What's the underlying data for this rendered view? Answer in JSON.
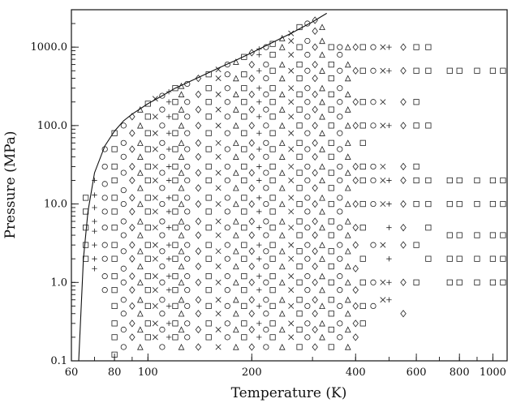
{
  "chart_data": {
    "type": "scatter",
    "title": "",
    "xlabel": "Temperature (K)",
    "ylabel": "Pressure (MPa)",
    "x_scale": "log",
    "y_scale": "log",
    "xlim": [
      60,
      1100
    ],
    "ylim": [
      0.1,
      3000
    ],
    "x_ticks": [
      {
        "value": 60,
        "label": "60"
      },
      {
        "value": 80,
        "label": "80"
      },
      {
        "value": 100,
        "label": "100"
      },
      {
        "value": 200,
        "label": "200"
      },
      {
        "value": 400,
        "label": "400"
      },
      {
        "value": 600,
        "label": "600"
      },
      {
        "value": 800,
        "label": "800"
      },
      {
        "value": 1000,
        "label": "1000"
      }
    ],
    "y_ticks": [
      {
        "value": 0.1,
        "label": "0.1"
      },
      {
        "value": 1,
        "label": "1.0"
      },
      {
        "value": 10,
        "label": "10.0"
      },
      {
        "value": 100,
        "label": "100.0"
      },
      {
        "value": 1000,
        "label": "1000.0"
      }
    ],
    "grid": false,
    "legend": "none",
    "boundary_curve": {
      "x": [
        63,
        65,
        67,
        70,
        75,
        80,
        85,
        90,
        100,
        110,
        120,
        140,
        160,
        180,
        200,
        230,
        260,
        300,
        330
      ],
      "y": [
        0.1,
        2,
        8,
        25,
        55,
        85,
        115,
        140,
        190,
        240,
        300,
        410,
        540,
        680,
        850,
        1150,
        1500,
        2100,
        2700
      ]
    },
    "data_columns": [
      {
        "x": 66,
        "y": [
          2,
          3,
          5,
          8,
          12
        ],
        "symbol": "square"
      },
      {
        "x": 70,
        "y": [
          1.5,
          2,
          3,
          4.5,
          6,
          9,
          13,
          20
        ],
        "symbol": "plus"
      },
      {
        "x": 75,
        "y": [
          0.8,
          1.2,
          2,
          3,
          5,
          8,
          12,
          18,
          30,
          50
        ],
        "symbol": "circle"
      },
      {
        "x": 80,
        "y": [
          0.12,
          0.2,
          0.3,
          0.5,
          0.8,
          1.2,
          2,
          3,
          5,
          8,
          12,
          20,
          30,
          50,
          80
        ],
        "symbol": "square"
      },
      {
        "x": 85,
        "y": [
          0.15,
          0.25,
          0.4,
          0.6,
          1,
          1.5,
          2.5,
          4,
          6,
          10,
          15,
          25,
          40,
          60,
          100
        ],
        "symbol": "circle"
      },
      {
        "x": 90,
        "y": [
          0.1,
          0.2,
          0.3,
          0.5,
          0.8,
          1.2,
          2,
          3,
          5,
          8,
          12,
          20,
          30,
          50,
          80,
          130
        ],
        "symbol": "diamond"
      },
      {
        "x": 95,
        "y": [
          0.1,
          0.15,
          0.25,
          0.4,
          0.6,
          1,
          1.6,
          2.5,
          4,
          6,
          10,
          16,
          25,
          40,
          60,
          100,
          160
        ],
        "symbol": "triangle"
      },
      {
        "x": 100,
        "y": [
          0.1,
          0.2,
          0.3,
          0.5,
          0.8,
          1.2,
          2,
          3,
          5,
          8,
          12,
          20,
          30,
          50,
          80,
          130,
          190
        ],
        "symbol": "square"
      },
      {
        "x": 105,
        "y": [
          0.2,
          0.3,
          0.5,
          0.8,
          1.2,
          2,
          3,
          5,
          8,
          12,
          20,
          30,
          50,
          80,
          130,
          220
        ],
        "symbol": "cross"
      },
      {
        "x": 110,
        "y": [
          0.1,
          0.15,
          0.25,
          0.4,
          0.6,
          1,
          1.6,
          2.5,
          4,
          6,
          10,
          16,
          25,
          40,
          60,
          100,
          160,
          240
        ],
        "symbol": "circle"
      },
      {
        "x": 115,
        "y": [
          0.2,
          0.3,
          0.5,
          0.8,
          1.2,
          2,
          3,
          5,
          8,
          12,
          20,
          30,
          50,
          80,
          130,
          200,
          270
        ],
        "symbol": "plus"
      },
      {
        "x": 120,
        "y": [
          0.1,
          0.2,
          0.3,
          0.5,
          0.8,
          1.2,
          2,
          3,
          5,
          8,
          12,
          20,
          30,
          50,
          80,
          130,
          200,
          300
        ],
        "symbol": "square"
      },
      {
        "x": 125,
        "y": [
          0.15,
          0.25,
          0.4,
          0.6,
          1,
          1.6,
          2.5,
          4,
          6,
          10,
          16,
          25,
          40,
          60,
          100,
          160,
          250,
          320
        ],
        "symbol": "triangle"
      },
      {
        "x": 130,
        "y": [
          0.1,
          0.2,
          0.3,
          0.5,
          0.8,
          1.2,
          2,
          3,
          5,
          8,
          12,
          20,
          30,
          50,
          80,
          130,
          200,
          340
        ],
        "symbol": "circle"
      },
      {
        "x": 140,
        "y": [
          0.1,
          0.15,
          0.25,
          0.4,
          0.6,
          1,
          1.6,
          2.5,
          4,
          6,
          10,
          16,
          25,
          40,
          60,
          100,
          160,
          250,
          400
        ],
        "symbol": "diamond"
      },
      {
        "x": 150,
        "y": [
          0.1,
          0.2,
          0.3,
          0.5,
          0.8,
          1.2,
          2,
          3,
          5,
          8,
          12,
          20,
          30,
          50,
          80,
          130,
          200,
          300,
          450
        ],
        "symbol": "square"
      },
      {
        "x": 160,
        "y": [
          0.1,
          0.15,
          0.25,
          0.4,
          0.6,
          1,
          1.6,
          2.5,
          4,
          6,
          10,
          16,
          25,
          40,
          60,
          100,
          160,
          250,
          400,
          520
        ],
        "symbol": "cross"
      },
      {
        "x": 170,
        "y": [
          0.2,
          0.3,
          0.5,
          0.8,
          1.2,
          2,
          3,
          5,
          8,
          12,
          20,
          30,
          50,
          80,
          130,
          200,
          300,
          450,
          600
        ],
        "symbol": "circle"
      },
      {
        "x": 180,
        "y": [
          0.1,
          0.15,
          0.25,
          0.4,
          0.6,
          1,
          1.6,
          2.5,
          4,
          6,
          10,
          16,
          25,
          40,
          60,
          100,
          160,
          250,
          400,
          650
        ],
        "symbol": "triangle"
      },
      {
        "x": 190,
        "y": [
          0.1,
          0.2,
          0.3,
          0.5,
          0.8,
          1.2,
          2,
          3,
          5,
          8,
          12,
          20,
          30,
          50,
          80,
          130,
          200,
          300,
          450,
          750
        ],
        "symbol": "square"
      },
      {
        "x": 200,
        "y": [
          0.1,
          0.15,
          0.25,
          0.4,
          0.6,
          1,
          1.6,
          2.5,
          4,
          6,
          10,
          16,
          25,
          40,
          60,
          100,
          160,
          250,
          400,
          600,
          850
        ],
        "symbol": "diamond"
      },
      {
        "x": 210,
        "y": [
          0.1,
          0.2,
          0.3,
          0.5,
          0.8,
          1.2,
          2,
          3,
          5,
          8,
          12,
          20,
          30,
          50,
          80,
          130,
          200,
          300,
          500,
          800,
          950
        ],
        "symbol": "plus"
      },
      {
        "x": 220,
        "y": [
          0.1,
          0.15,
          0.25,
          0.4,
          0.6,
          1,
          1.6,
          2.5,
          4,
          6,
          10,
          16,
          25,
          40,
          60,
          100,
          160,
          250,
          400,
          600,
          1000
        ],
        "symbol": "circle"
      },
      {
        "x": 230,
        "y": [
          0.1,
          0.2,
          0.3,
          0.5,
          0.8,
          1.2,
          2,
          3,
          5,
          8,
          12,
          20,
          30,
          50,
          80,
          130,
          200,
          300,
          500,
          800,
          1100
        ],
        "symbol": "square"
      },
      {
        "x": 245,
        "y": [
          0.1,
          0.15,
          0.25,
          0.4,
          0.6,
          1,
          1.6,
          2.5,
          4,
          6,
          10,
          16,
          25,
          40,
          60,
          100,
          160,
          250,
          400,
          600,
          1000,
          1300
        ],
        "symbol": "triangle"
      },
      {
        "x": 260,
        "y": [
          0.1,
          0.2,
          0.3,
          0.5,
          0.8,
          1.2,
          2,
          3,
          5,
          8,
          12,
          20,
          30,
          50,
          80,
          130,
          200,
          300,
          500,
          800,
          1200,
          1500
        ],
        "symbol": "cross"
      },
      {
        "x": 275,
        "y": [
          0.1,
          0.15,
          0.25,
          0.4,
          0.6,
          1,
          1.6,
          2.5,
          4,
          6,
          10,
          16,
          25,
          40,
          60,
          100,
          160,
          250,
          400,
          600,
          1000,
          1800
        ],
        "symbol": "square"
      },
      {
        "x": 290,
        "y": [
          0.1,
          0.2,
          0.3,
          0.5,
          0.8,
          1.2,
          2,
          3,
          5,
          8,
          12,
          20,
          30,
          50,
          80,
          130,
          200,
          300,
          500,
          800,
          1200,
          2000
        ],
        "symbol": "circle"
      },
      {
        "x": 305,
        "y": [
          0.1,
          0.15,
          0.25,
          0.4,
          0.6,
          1,
          1.6,
          2.5,
          4,
          6,
          10,
          16,
          25,
          40,
          60,
          100,
          160,
          250,
          400,
          600,
          1000,
          1600,
          2200
        ],
        "symbol": "diamond"
      },
      {
        "x": 320,
        "y": [
          0.1,
          0.2,
          0.3,
          0.5,
          0.8,
          1.2,
          2,
          3,
          5,
          8,
          12,
          20,
          30,
          50,
          80,
          130,
          200,
          300,
          500,
          800,
          1200,
          1800
        ],
        "symbol": "triangle"
      },
      {
        "x": 340,
        "y": [
          0.1,
          0.15,
          0.25,
          0.4,
          0.6,
          1,
          1.6,
          2.5,
          4,
          6,
          10,
          16,
          25,
          40,
          60,
          100,
          160,
          250,
          400,
          600,
          1000
        ],
        "symbol": "square"
      },
      {
        "x": 360,
        "y": [
          0.1,
          0.2,
          0.3,
          0.5,
          0.8,
          1.2,
          2,
          3,
          5,
          8,
          12,
          20,
          30,
          50,
          80,
          130,
          200,
          300,
          500,
          800,
          1000
        ],
        "symbol": "circle"
      },
      {
        "x": 380,
        "y": [
          0.1,
          0.15,
          0.25,
          0.4,
          0.6,
          1,
          1.6,
          2.5,
          4,
          6,
          10,
          16,
          25,
          40,
          60,
          100,
          160,
          250,
          400,
          600,
          1000
        ],
        "symbol": "triangle"
      },
      {
        "x": 400,
        "y": [
          0.1,
          0.2,
          0.3,
          0.5,
          0.8,
          1.5,
          3,
          5,
          10,
          20,
          30,
          100,
          200,
          500,
          1000
        ],
        "symbol": "diamond"
      },
      {
        "x": 420,
        "y": [
          0.3,
          0.5,
          1,
          2,
          5,
          10,
          20,
          30,
          60,
          100,
          200,
          500,
          1000
        ],
        "symbol": "square"
      },
      {
        "x": 450,
        "y": [
          0.1,
          0.5,
          1,
          3,
          10,
          20,
          30,
          100,
          200,
          500,
          1000
        ],
        "symbol": "circle"
      },
      {
        "x": 480,
        "y": [
          0.6,
          1,
          3,
          10,
          20,
          30,
          100,
          200,
          500,
          1000
        ],
        "symbol": "cross"
      },
      {
        "x": 500,
        "y": [
          0.6,
          1,
          2,
          5,
          10,
          20,
          100,
          500,
          1000
        ],
        "symbol": "plus"
      },
      {
        "x": 550,
        "y": [
          0.4,
          1,
          3,
          5,
          10,
          20,
          30,
          100,
          200,
          500,
          1000
        ],
        "symbol": "diamond"
      },
      {
        "x": 600,
        "y": [
          1,
          3,
          10,
          20,
          30,
          100,
          200,
          500,
          1000
        ],
        "symbol": "square"
      },
      {
        "x": 650,
        "y": [
          2,
          5,
          10,
          20,
          100,
          500,
          1000
        ],
        "symbol": "square"
      },
      {
        "x": 750,
        "y": [
          1,
          2,
          4,
          10,
          20,
          500
        ],
        "symbol": "square"
      },
      {
        "x": 800,
        "y": [
          1,
          2,
          4,
          10,
          20,
          500
        ],
        "symbol": "square"
      },
      {
        "x": 900,
        "y": [
          1,
          2,
          4,
          10,
          20,
          500
        ],
        "symbol": "square"
      },
      {
        "x": 1000,
        "y": [
          1,
          2,
          4,
          10,
          20,
          500
        ],
        "symbol": "square"
      },
      {
        "x": 1070,
        "y": [
          1,
          2,
          4,
          10,
          20,
          500
        ],
        "symbol": "square"
      }
    ]
  }
}
